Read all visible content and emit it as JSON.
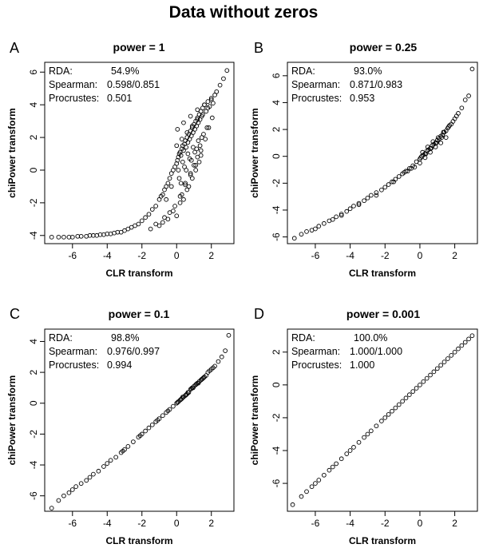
{
  "title": "Data without zeros",
  "chart_data": [
    {
      "type": "scatter",
      "panel": "A",
      "title": "power = 1",
      "xlabel": "CLR transform",
      "ylabel": "chiPower transform",
      "xlim": [
        -7.6,
        3.3
      ],
      "ylim": [
        -4.5,
        6.6
      ],
      "xticks": [
        -6,
        -4,
        -2,
        0,
        2
      ],
      "yticks": [
        -4,
        -2,
        0,
        2,
        4,
        6
      ],
      "stats": [
        {
          "label": "RDA:",
          "value": "54.9%"
        },
        {
          "label": "Spearman:",
          "value": "0.598/0.851"
        },
        {
          "label": "Procrustes:",
          "value": "0.501"
        }
      ],
      "x": [
        -7.2,
        -6.8,
        -6.5,
        -6.2,
        -6.0,
        -5.7,
        -5.5,
        -5.2,
        -5.0,
        -4.8,
        -4.6,
        -4.4,
        -4.2,
        -4.0,
        -3.8,
        -3.6,
        -3.4,
        -3.2,
        -3.0,
        -2.8,
        -2.6,
        -2.4,
        -2.2,
        -2.0,
        -1.8,
        -1.6,
        -1.4,
        -1.2,
        -1.0,
        -0.9,
        -0.8,
        -0.7,
        -0.6,
        -0.5,
        -0.4,
        -0.3,
        -0.2,
        -0.1,
        0.0,
        0.05,
        0.1,
        0.15,
        0.2,
        0.25,
        0.3,
        0.35,
        0.4,
        0.45,
        0.5,
        0.55,
        0.6,
        0.65,
        0.7,
        0.75,
        0.8,
        0.85,
        0.9,
        0.95,
        1.0,
        1.05,
        1.1,
        1.15,
        1.2,
        1.25,
        1.3,
        1.35,
        1.4,
        1.45,
        1.5,
        1.6,
        1.7,
        1.8,
        1.9,
        2.0,
        2.1,
        2.2,
        2.3,
        2.5,
        2.7,
        2.9,
        -0.2,
        0.0,
        0.3,
        0.5,
        0.8,
        1.0,
        1.2,
        1.4,
        0.2,
        0.6,
        0.9,
        1.1,
        1.3,
        0.4,
        0.7,
        -0.5,
        -1.0,
        -1.5,
        -0.8,
        0.1,
        0.35,
        0.65,
        0.95,
        1.25,
        1.55,
        1.85,
        0.15,
        0.45,
        0.75,
        1.05,
        1.35,
        1.65,
        -0.3,
        -0.6,
        0.25,
        0.55,
        0.85,
        1.15,
        1.45,
        1.75,
        2.05,
        0.0,
        0.3,
        0.6,
        0.9,
        1.2,
        1.5,
        1.8,
        -0.1,
        0.2,
        0.5,
        0.8,
        1.1,
        1.4,
        -0.4,
        -0.7,
        -1.2,
        0.05,
        0.4,
        0.8,
        1.2,
        1.6,
        2.0
      ],
      "y": [
        -4.1,
        -4.1,
        -4.1,
        -4.1,
        -4.1,
        -4.05,
        -4.05,
        -4.05,
        -4.0,
        -4.0,
        -4.0,
        -3.95,
        -3.95,
        -3.9,
        -3.9,
        -3.85,
        -3.8,
        -3.8,
        -3.7,
        -3.6,
        -3.5,
        -3.4,
        -3.3,
        -3.1,
        -2.9,
        -2.7,
        -2.4,
        -2.2,
        -1.8,
        -1.6,
        -1.5,
        -1.2,
        -1.0,
        -0.8,
        -0.5,
        -0.2,
        0.0,
        0.2,
        0.4,
        0.6,
        0.8,
        1.0,
        1.1,
        0.9,
        1.3,
        1.5,
        1.2,
        1.6,
        1.8,
        1.4,
        2.0,
        1.7,
        2.2,
        1.9,
        2.4,
        2.1,
        2.6,
        2.3,
        2.8,
        2.5,
        3.0,
        2.7,
        3.2,
        2.9,
        3.4,
        3.1,
        3.6,
        3.3,
        3.8,
        4.0,
        3.6,
        4.2,
        3.9,
        4.4,
        4.1,
        4.6,
        4.8,
        5.2,
        5.6,
        6.1,
        -2.5,
        -2.8,
        -1.5,
        -0.8,
        -0.2,
        0.3,
        0.8,
        1.2,
        -2.0,
        -1.2,
        -0.5,
        0.0,
        0.5,
        -1.8,
        -1.0,
        -3.0,
        -3.4,
        -3.6,
        -3.2,
        0.0,
        0.5,
        1.0,
        1.4,
        1.8,
        2.2,
        2.6,
        -0.5,
        0.2,
        0.7,
        1.1,
        1.5,
        1.9,
        -1.0,
        -1.8,
        -0.8,
        0.0,
        0.6,
        1.3,
        2.0,
        2.6,
        3.2,
        1.5,
        1.9,
        2.3,
        2.7,
        3.1,
        3.4,
        3.8,
        -2.2,
        -1.6,
        -0.9,
        -0.3,
        0.3,
        0.9,
        -2.6,
        -2.9,
        -3.3,
        2.5,
        2.9,
        3.3,
        3.7,
        4.0,
        4.3
      ]
    },
    {
      "type": "scatter",
      "panel": "B",
      "title": "power = 0.25",
      "xlabel": "CLR transform",
      "ylabel": "chiPower transform",
      "xlim": [
        -7.6,
        3.3
      ],
      "ylim": [
        -6.5,
        7.0
      ],
      "xticks": [
        -6,
        -4,
        -2,
        0,
        2
      ],
      "yticks": [
        -6,
        -4,
        -2,
        0,
        2,
        4,
        6
      ],
      "stats": [
        {
          "label": "RDA:",
          "value": "93.0%"
        },
        {
          "label": "Spearman:",
          "value": "0.871/0.983"
        },
        {
          "label": "Procrustes:",
          "value": "0.953"
        }
      ],
      "x": [
        -7.2,
        -6.8,
        -6.5,
        -6.2,
        -6.0,
        -5.8,
        -5.5,
        -5.2,
        -5.0,
        -4.8,
        -4.5,
        -4.2,
        -4.0,
        -3.8,
        -3.5,
        -3.2,
        -3.0,
        -2.8,
        -2.5,
        -2.2,
        -2.0,
        -1.8,
        -1.6,
        -1.4,
        -1.2,
        -1.0,
        -0.8,
        -0.6,
        -0.4,
        -0.2,
        0.0,
        0.1,
        0.2,
        0.3,
        0.4,
        0.5,
        0.6,
        0.7,
        0.8,
        0.9,
        1.0,
        1.1,
        1.2,
        1.3,
        1.4,
        1.5,
        1.6,
        1.7,
        1.8,
        1.9,
        2.0,
        2.1,
        2.2,
        2.4,
        2.6,
        2.8,
        3.0,
        -0.5,
        0.0,
        0.3,
        0.6,
        0.9,
        1.2,
        1.5,
        -1.5,
        -0.9,
        0.15,
        0.45,
        0.75,
        1.05,
        1.35,
        1.65,
        -2.5,
        -3.5,
        -4.5,
        0.05,
        0.35,
        0.65,
        0.95,
        1.25,
        -0.3,
        -0.7
      ],
      "y": [
        -6.1,
        -5.8,
        -5.6,
        -5.5,
        -5.4,
        -5.2,
        -5.0,
        -4.8,
        -4.7,
        -4.5,
        -4.3,
        -4.1,
        -3.9,
        -3.7,
        -3.5,
        -3.3,
        -3.1,
        -2.9,
        -2.7,
        -2.5,
        -2.3,
        -2.1,
        -1.9,
        -1.7,
        -1.5,
        -1.3,
        -1.1,
        -0.9,
        -0.7,
        -0.4,
        -0.2,
        0.0,
        0.1,
        0.2,
        0.4,
        0.5,
        0.6,
        0.8,
        0.9,
        1.0,
        1.2,
        1.3,
        1.5,
        1.6,
        1.8,
        1.9,
        2.1,
        2.3,
        2.4,
        2.6,
        2.8,
        3.0,
        3.2,
        3.6,
        4.2,
        4.5,
        6.5,
        -0.9,
        -0.5,
        -0.1,
        0.3,
        0.7,
        1.0,
        1.4,
        -1.9,
        -1.2,
        0.3,
        0.7,
        1.1,
        1.4,
        1.8,
        2.2,
        -2.9,
        -3.6,
        -4.4,
        -0.1,
        0.2,
        0.6,
        1.0,
        1.4,
        -0.8,
        -1.1
      ]
    },
    {
      "type": "scatter",
      "panel": "C",
      "title": "power = 0.1",
      "xlabel": "CLR transform",
      "ylabel": "chiPower transform",
      "xlim": [
        -7.6,
        3.3
      ],
      "ylim": [
        -7.0,
        4.8
      ],
      "xticks": [
        -6,
        -4,
        -2,
        0,
        2
      ],
      "yticks": [
        -6,
        -4,
        -2,
        0,
        2,
        4
      ],
      "stats": [
        {
          "label": "RDA:",
          "value": "98.8%"
        },
        {
          "label": "Spearman:",
          "value": "0.976/0.997"
        },
        {
          "label": "Procrustes:",
          "value": "0.994"
        }
      ],
      "x": [
        -7.2,
        -6.8,
        -6.5,
        -6.2,
        -6.0,
        -5.8,
        -5.5,
        -5.2,
        -5.0,
        -4.8,
        -4.5,
        -4.2,
        -4.0,
        -3.8,
        -3.5,
        -3.2,
        -3.0,
        -2.8,
        -2.5,
        -2.2,
        -2.0,
        -1.8,
        -1.6,
        -1.4,
        -1.2,
        -1.0,
        -0.8,
        -0.6,
        -0.4,
        -0.2,
        0.0,
        0.1,
        0.2,
        0.3,
        0.4,
        0.5,
        0.6,
        0.7,
        0.8,
        0.9,
        1.0,
        1.1,
        1.2,
        1.3,
        1.4,
        1.5,
        1.6,
        1.7,
        1.8,
        1.9,
        2.0,
        2.1,
        2.2,
        2.4,
        2.6,
        2.8,
        3.0,
        0.25,
        0.55,
        0.85,
        1.15,
        1.45,
        -0.5,
        -1.1,
        -2.1,
        -3.1,
        0.05,
        0.35,
        0.65,
        0.95,
        1.25,
        1.55
      ],
      "y": [
        -6.8,
        -6.3,
        -6.0,
        -5.8,
        -5.6,
        -5.4,
        -5.2,
        -5.0,
        -4.8,
        -4.6,
        -4.4,
        -4.1,
        -3.9,
        -3.7,
        -3.5,
        -3.2,
        -3.0,
        -2.8,
        -2.5,
        -2.2,
        -2.0,
        -1.8,
        -1.6,
        -1.4,
        -1.2,
        -1.0,
        -0.8,
        -0.6,
        -0.4,
        -0.2,
        0.0,
        0.1,
        0.2,
        0.3,
        0.4,
        0.5,
        0.6,
        0.7,
        0.9,
        1.0,
        1.1,
        1.2,
        1.3,
        1.4,
        1.5,
        1.6,
        1.7,
        1.8,
        2.0,
        2.1,
        2.2,
        2.3,
        2.4,
        2.7,
        3.0,
        3.4,
        4.4,
        0.25,
        0.55,
        0.95,
        1.25,
        1.55,
        -0.5,
        -1.1,
        -2.1,
        -3.1,
        0.05,
        0.4,
        0.7,
        1.0,
        1.3,
        1.65
      ]
    },
    {
      "type": "scatter",
      "panel": "D",
      "title": "power = 0.001",
      "xlabel": "CLR transform",
      "ylabel": "chiPower transform",
      "xlim": [
        -7.6,
        3.3
      ],
      "ylim": [
        -7.7,
        3.4
      ],
      "xticks": [
        -6,
        -4,
        -2,
        0,
        2
      ],
      "yticks": [
        -6,
        -4,
        -2,
        0,
        2
      ],
      "stats": [
        {
          "label": "RDA:",
          "value": "100.0%"
        },
        {
          "label": "Spearman:",
          "value": "1.000/1.000"
        },
        {
          "label": "Procrustes:",
          "value": "1.000"
        }
      ],
      "x": [
        -7.3,
        -6.8,
        -6.5,
        -6.2,
        -6.0,
        -5.8,
        -5.5,
        -5.2,
        -5.0,
        -4.8,
        -4.5,
        -4.2,
        -4.0,
        -3.8,
        -3.5,
        -3.2,
        -3.0,
        -2.8,
        -2.5,
        -2.2,
        -2.0,
        -1.8,
        -1.6,
        -1.4,
        -1.2,
        -1.0,
        -0.8,
        -0.6,
        -0.4,
        -0.2,
        0.0,
        0.2,
        0.4,
        0.6,
        0.8,
        1.0,
        1.2,
        1.4,
        1.6,
        1.8,
        2.0,
        2.2,
        2.4,
        2.6,
        2.8,
        3.0
      ],
      "y": [
        -7.3,
        -6.8,
        -6.5,
        -6.2,
        -6.0,
        -5.8,
        -5.5,
        -5.2,
        -5.0,
        -4.8,
        -4.5,
        -4.2,
        -4.0,
        -3.8,
        -3.5,
        -3.2,
        -3.0,
        -2.8,
        -2.5,
        -2.2,
        -2.0,
        -1.8,
        -1.6,
        -1.4,
        -1.2,
        -1.0,
        -0.8,
        -0.6,
        -0.4,
        -0.2,
        0.0,
        0.2,
        0.4,
        0.6,
        0.8,
        1.0,
        1.2,
        1.4,
        1.6,
        1.8,
        2.0,
        2.2,
        2.4,
        2.6,
        2.8,
        3.0
      ]
    }
  ]
}
